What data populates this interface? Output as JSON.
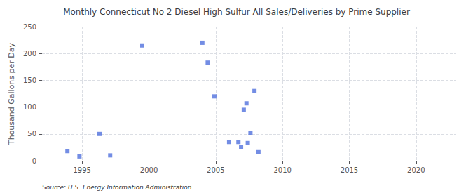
{
  "chart_data": {
    "type": "scatter",
    "title": "Monthly Connecticut No 2 Diesel High Sulfur All Sales/Deliveries by Prime Supplier",
    "ylabel": "Thousand Gallons per Day",
    "annotation": "Source: U.S. Energy Information Administration",
    "marker": "square",
    "x": [
      1993.9,
      1994.8,
      1996.3,
      1997.1,
      1999.5,
      2004.0,
      2004.4,
      2004.9,
      2006.0,
      2006.7,
      2006.9,
      2007.1,
      2007.3,
      2007.4,
      2007.6,
      2007.9,
      2008.2
    ],
    "values": [
      18,
      8,
      50,
      10,
      215,
      220,
      183,
      120,
      35,
      35,
      25,
      95,
      107,
      33,
      52,
      130,
      16
    ],
    "xlim": [
      1992,
      2023
    ],
    "ylim": [
      0,
      250
    ],
    "xticks": [
      1995,
      2000,
      2005,
      2010,
      2015,
      2020
    ],
    "yticks": [
      0,
      50,
      100,
      150,
      200,
      250
    ],
    "grid": true
  }
}
